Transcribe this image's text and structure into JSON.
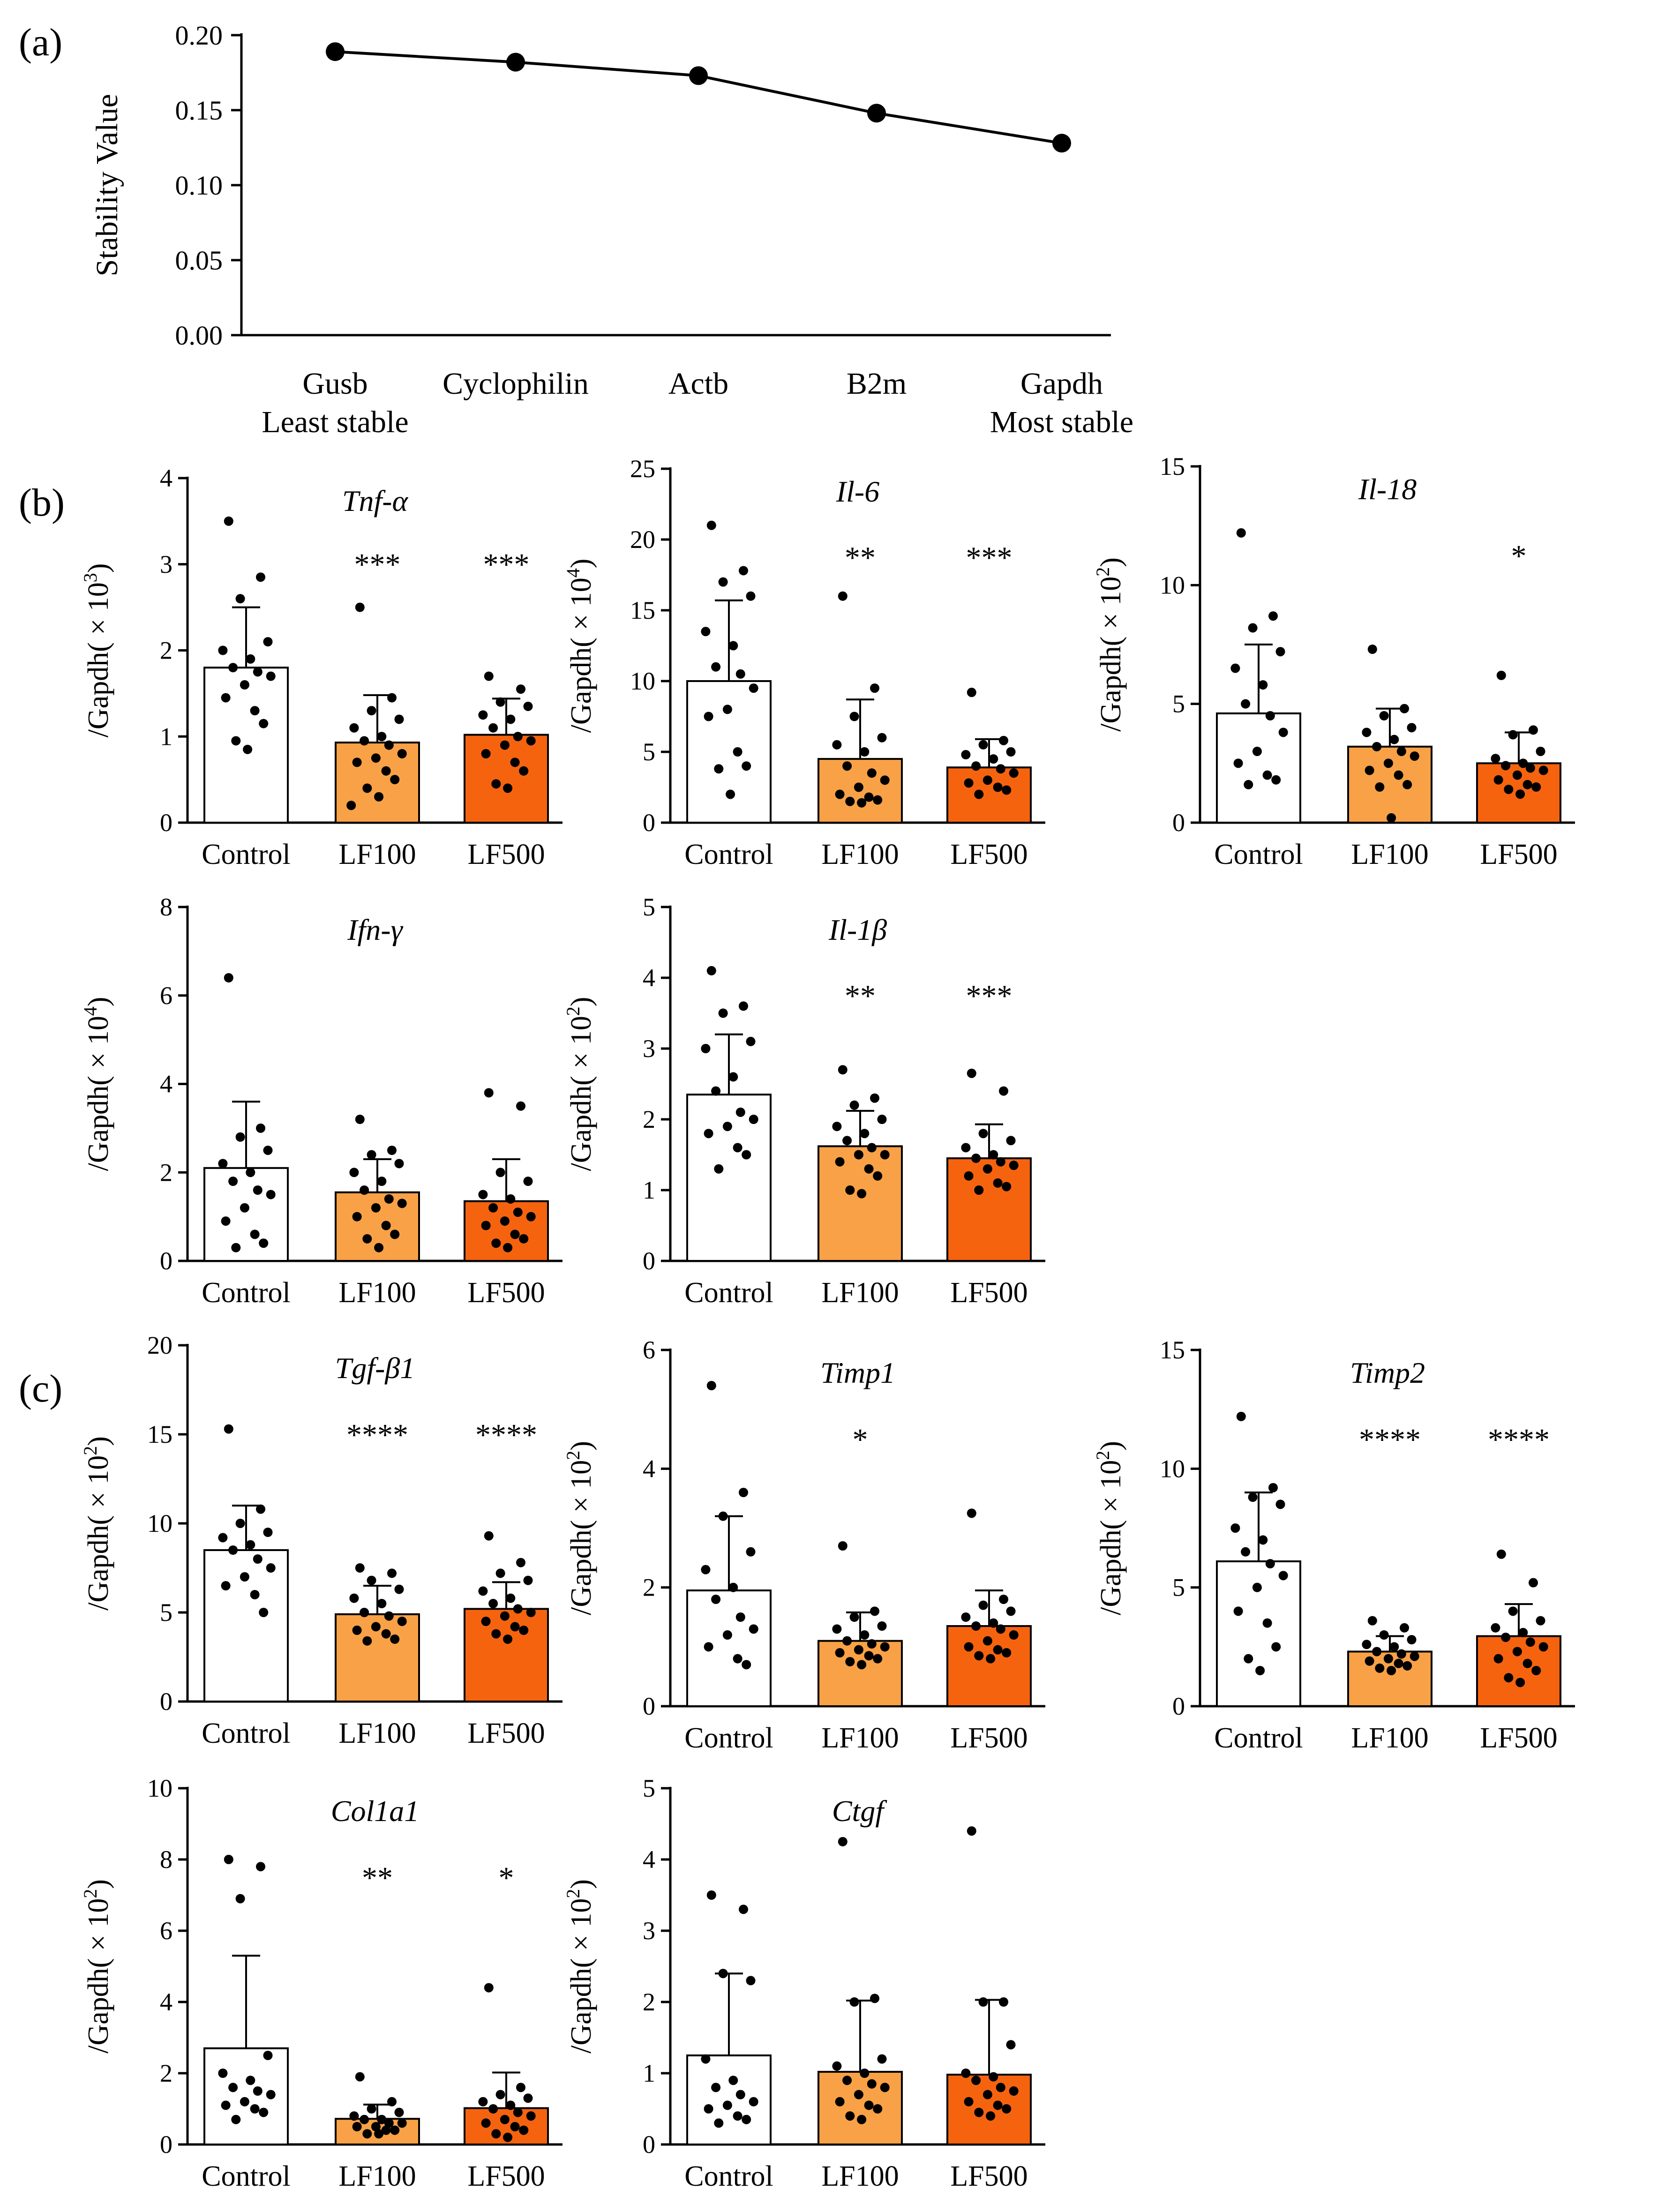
{
  "panel_labels": [
    "(a)",
    "(b)",
    "(c)"
  ],
  "colors": {
    "control": "#ffffff",
    "lf100": "#f9a146",
    "lf500": "#f6630f",
    "stroke": "#000000"
  },
  "chart_data": [
    {
      "id": "stability",
      "type": "line",
      "categories": [
        "Gusb",
        "Cyclophilin",
        "Actb",
        "B2m",
        "Gapdh"
      ],
      "sublabels": [
        "Least stable",
        "",
        "",
        "",
        "Most stable"
      ],
      "values": [
        0.189,
        0.182,
        0.173,
        0.148,
        0.128
      ],
      "ylabel": "Stability Value",
      "ylim": [
        0,
        0.2
      ],
      "yticks": [
        "0.00",
        "0.05",
        "0.10",
        "0.15",
        "0.20"
      ]
    },
    {
      "id": "tnf",
      "type": "bar",
      "title": "Tnf-α",
      "ylabel": "/Gapdh( × 10",
      "yexp": "3",
      "ylim": [
        0,
        4
      ],
      "yticks": [
        "0",
        "1",
        "2",
        "3",
        "4"
      ],
      "categories": [
        "Control",
        "LF100",
        "LF500"
      ],
      "values": [
        1.8,
        0.93,
        1.02
      ],
      "errors": [
        0.7,
        0.55,
        0.42
      ],
      "significance": [
        "",
        "***",
        "***"
      ],
      "points": [
        [
          3.5,
          2.85,
          2.6,
          2.1,
          2.0,
          1.9,
          1.8,
          1.75,
          1.7,
          1.6,
          1.45,
          1.3,
          1.15,
          0.95,
          0.85
        ],
        [
          2.5,
          1.45,
          1.3,
          1.2,
          1.1,
          1.0,
          0.95,
          0.9,
          0.8,
          0.75,
          0.7,
          0.6,
          0.5,
          0.4,
          0.3,
          0.2
        ],
        [
          1.7,
          1.55,
          1.4,
          1.35,
          1.25,
          1.2,
          1.1,
          1.0,
          0.95,
          0.9,
          0.8,
          0.7,
          0.6,
          0.45,
          0.4
        ]
      ]
    },
    {
      "id": "il6",
      "type": "bar",
      "title": "Il-6",
      "ylabel": "/Gapdh( × 10",
      "yexp": "4",
      "ylim": [
        0,
        25
      ],
      "yticks": [
        "0",
        "5",
        "10",
        "15",
        "20",
        "25"
      ],
      "categories": [
        "Control",
        "LF100",
        "LF500"
      ],
      "values": [
        10.0,
        4.5,
        3.9
      ],
      "errors": [
        5.7,
        4.2,
        2.0
      ],
      "significance": [
        "",
        "**",
        "***"
      ],
      "points": [
        [
          21.0,
          17.8,
          17.0,
          16.0,
          13.5,
          12.5,
          11.0,
          10.5,
          9.5,
          8.0,
          7.5,
          5.0,
          4.0,
          3.8,
          2.0
        ],
        [
          16.0,
          9.5,
          7.5,
          6.0,
          5.5,
          5.0,
          4.0,
          3.5,
          3.0,
          2.5,
          2.0,
          1.8,
          1.6,
          1.5,
          1.4
        ],
        [
          9.2,
          5.8,
          5.5,
          5.0,
          4.8,
          4.5,
          4.0,
          3.8,
          3.5,
          3.0,
          2.8,
          2.5,
          2.3,
          2.0
        ]
      ]
    },
    {
      "id": "il18",
      "type": "bar",
      "title": "Il-18",
      "ylabel": "/Gapdh( × 10",
      "yexp": "2",
      "ylim": [
        0,
        15
      ],
      "yticks": [
        "0",
        "5",
        "10",
        "15"
      ],
      "categories": [
        "Control",
        "LF100",
        "LF500"
      ],
      "values": [
        4.6,
        3.2,
        2.5
      ],
      "errors": [
        2.9,
        1.6,
        1.3
      ],
      "significance": [
        "",
        "",
        "*"
      ],
      "points": [
        [
          12.2,
          8.7,
          8.2,
          7.2,
          6.5,
          5.8,
          5.0,
          4.5,
          3.8,
          3.0,
          2.5,
          2.0,
          1.8,
          1.6
        ],
        [
          7.3,
          4.8,
          4.5,
          4.0,
          3.8,
          3.5,
          3.2,
          3.0,
          2.8,
          2.5,
          2.2,
          2.0,
          1.6,
          1.5,
          0.2
        ],
        [
          6.2,
          3.9,
          3.7,
          3.0,
          2.7,
          2.5,
          2.4,
          2.3,
          2.2,
          2.0,
          1.8,
          1.6,
          1.5,
          1.4,
          1.2
        ]
      ]
    },
    {
      "id": "ifng",
      "type": "bar",
      "title": "Ifn-γ",
      "ylabel": "/Gapdh( × 10",
      "yexp": "4",
      "ylim": [
        0,
        8
      ],
      "yticks": [
        "0",
        "2",
        "4",
        "6",
        "8"
      ],
      "categories": [
        "Control",
        "LF100",
        "LF500"
      ],
      "values": [
        2.1,
        1.55,
        1.35
      ],
      "errors": [
        1.5,
        0.75,
        0.95
      ],
      "significance": [
        "",
        "",
        ""
      ],
      "points": [
        [
          6.4,
          3.0,
          2.8,
          2.5,
          2.2,
          2.0,
          1.8,
          1.6,
          1.5,
          1.2,
          0.9,
          0.6,
          0.4,
          0.3
        ],
        [
          3.2,
          2.5,
          2.4,
          2.2,
          2.0,
          1.8,
          1.6,
          1.4,
          1.3,
          1.2,
          1.0,
          0.8,
          0.6,
          0.5,
          0.3
        ],
        [
          3.8,
          3.5,
          2.0,
          1.8,
          1.5,
          1.4,
          1.2,
          1.1,
          1.0,
          0.9,
          0.8,
          0.6,
          0.5,
          0.4,
          0.3
        ]
      ]
    },
    {
      "id": "il1b",
      "type": "bar",
      "title": "Il-1β",
      "ylabel": "/Gapdh( × 10",
      "yexp": "2",
      "ylim": [
        0,
        5
      ],
      "yticks": [
        "0",
        "1",
        "2",
        "3",
        "4",
        "5"
      ],
      "categories": [
        "Control",
        "LF100",
        "LF500"
      ],
      "values": [
        2.35,
        1.62,
        1.45
      ],
      "errors": [
        0.85,
        0.5,
        0.48
      ],
      "significance": [
        "",
        "**",
        "***"
      ],
      "points": [
        [
          4.1,
          3.6,
          3.5,
          3.1,
          3.0,
          2.6,
          2.4,
          2.1,
          2.0,
          1.9,
          1.8,
          1.6,
          1.5,
          1.3
        ],
        [
          2.7,
          2.3,
          2.2,
          2.0,
          1.9,
          1.8,
          1.7,
          1.6,
          1.5,
          1.5,
          1.4,
          1.3,
          1.2,
          1.0,
          0.95
        ],
        [
          2.65,
          2.4,
          1.8,
          1.7,
          1.6,
          1.5,
          1.45,
          1.4,
          1.35,
          1.3,
          1.2,
          1.1,
          1.05,
          1.0
        ]
      ]
    },
    {
      "id": "tgfb1",
      "type": "bar",
      "title": "Tgf-β1",
      "ylabel": "/Gapdh( × 10",
      "yexp": "2",
      "ylim": [
        0,
        20
      ],
      "yticks": [
        "0",
        "5",
        "10",
        "15",
        "20"
      ],
      "categories": [
        "Control",
        "LF100",
        "LF500"
      ],
      "values": [
        8.5,
        4.9,
        5.2
      ],
      "errors": [
        2.5,
        1.6,
        1.5
      ],
      "significance": [
        "",
        "****",
        "****"
      ],
      "points": [
        [
          15.3,
          10.8,
          10.0,
          9.5,
          9.2,
          8.8,
          8.5,
          8.0,
          7.5,
          7.0,
          6.5,
          6.0,
          5.0
        ],
        [
          7.5,
          7.2,
          6.8,
          6.3,
          5.8,
          5.5,
          5.0,
          4.8,
          4.5,
          4.2,
          4.0,
          3.8,
          3.5,
          3.4
        ],
        [
          9.3,
          7.8,
          7.2,
          6.8,
          6.2,
          5.8,
          5.5,
          5.2,
          5.0,
          4.8,
          4.5,
          4.2,
          4.0,
          3.8,
          3.5
        ]
      ]
    },
    {
      "id": "timp1",
      "type": "bar",
      "title": "Timp1",
      "ylabel": "/Gapdh( × 10",
      "yexp": "2",
      "ylim": [
        0,
        6
      ],
      "yticks": [
        "0",
        "2",
        "4",
        "6"
      ],
      "categories": [
        "Control",
        "LF100",
        "LF500"
      ],
      "values": [
        1.95,
        1.1,
        1.35
      ],
      "errors": [
        1.25,
        0.48,
        0.6
      ],
      "significance": [
        "",
        "*",
        ""
      ],
      "points": [
        [
          5.4,
          3.6,
          3.2,
          2.6,
          2.3,
          2.0,
          1.8,
          1.5,
          1.3,
          1.2,
          1.0,
          0.8,
          0.7
        ],
        [
          2.7,
          1.6,
          1.5,
          1.35,
          1.3,
          1.2,
          1.1,
          1.05,
          1.0,
          0.95,
          0.9,
          0.85,
          0.8,
          0.75,
          0.7
        ],
        [
          3.25,
          1.8,
          1.7,
          1.6,
          1.5,
          1.4,
          1.35,
          1.3,
          1.2,
          1.1,
          1.0,
          0.95,
          0.9,
          0.85,
          0.8
        ]
      ]
    },
    {
      "id": "timp2",
      "type": "bar",
      "title": "Timp2",
      "ylabel": "/Gapdh( × 10",
      "yexp": "2",
      "ylim": [
        0,
        15
      ],
      "yticks": [
        "0",
        "5",
        "10",
        "15"
      ],
      "categories": [
        "Control",
        "LF100",
        "LF500"
      ],
      "values": [
        6.1,
        2.3,
        2.95
      ],
      "errors": [
        2.9,
        0.65,
        1.35
      ],
      "significance": [
        "",
        "****",
        "****"
      ],
      "points": [
        [
          12.2,
          9.2,
          8.8,
          8.5,
          7.5,
          7.0,
          6.5,
          6.0,
          5.5,
          5.0,
          4.0,
          3.5,
          2.5,
          2.0,
          1.5
        ],
        [
          3.6,
          3.3,
          3.0,
          2.8,
          2.6,
          2.5,
          2.3,
          2.2,
          2.1,
          2.0,
          1.9,
          1.8,
          1.7,
          1.6,
          1.5
        ],
        [
          6.4,
          5.2,
          4.0,
          3.6,
          3.3,
          3.1,
          2.9,
          2.7,
          2.5,
          2.3,
          2.0,
          1.8,
          1.5,
          1.2,
          1.0
        ]
      ]
    },
    {
      "id": "col1a1",
      "type": "bar",
      "title": "Col1a1",
      "ylabel": "/Gapdh( × 10",
      "yexp": "2",
      "ylim": [
        0,
        10
      ],
      "yticks": [
        "0",
        "2",
        "4",
        "6",
        "8",
        "10"
      ],
      "categories": [
        "Control",
        "LF100",
        "LF500"
      ],
      "values": [
        2.7,
        0.72,
        1.02
      ],
      "errors": [
        2.6,
        0.4,
        1.0
      ],
      "significance": [
        "",
        "**",
        "*"
      ],
      "points": [
        [
          8.0,
          7.8,
          6.9,
          2.5,
          2.0,
          1.8,
          1.6,
          1.5,
          1.4,
          1.2,
          1.1,
          1.0,
          0.9,
          0.7
        ],
        [
          1.9,
          1.2,
          1.0,
          0.9,
          0.8,
          0.7,
          0.7,
          0.6,
          0.6,
          0.5,
          0.5,
          0.4,
          0.4,
          0.3,
          0.3
        ],
        [
          4.4,
          1.6,
          1.4,
          1.3,
          1.2,
          1.1,
          1.0,
          0.9,
          0.8,
          0.7,
          0.6,
          0.5,
          0.4,
          0.3,
          0.2
        ]
      ]
    },
    {
      "id": "ctgf",
      "type": "bar",
      "title": "Ctgf",
      "ylabel": "/Gapdh( × 10",
      "yexp": "2",
      "ylim": [
        0,
        5
      ],
      "yticks": [
        "0",
        "1",
        "2",
        "3",
        "4",
        "5"
      ],
      "categories": [
        "Control",
        "LF100",
        "LF500"
      ],
      "values": [
        1.25,
        1.02,
        0.98
      ],
      "errors": [
        1.15,
        1.0,
        1.05
      ],
      "significance": [
        "",
        "",
        ""
      ],
      "points": [
        [
          3.5,
          3.3,
          2.4,
          2.3,
          1.2,
          0.9,
          0.8,
          0.7,
          0.6,
          0.55,
          0.5,
          0.4,
          0.35,
          0.3
        ],
        [
          4.25,
          2.05,
          2.0,
          1.2,
          1.1,
          1.0,
          0.9,
          0.85,
          0.8,
          0.7,
          0.6,
          0.55,
          0.5,
          0.4,
          0.35
        ],
        [
          4.4,
          2.0,
          2.0,
          1.4,
          1.0,
          0.95,
          0.9,
          0.8,
          0.75,
          0.7,
          0.6,
          0.55,
          0.5,
          0.45,
          0.4
        ]
      ]
    }
  ]
}
